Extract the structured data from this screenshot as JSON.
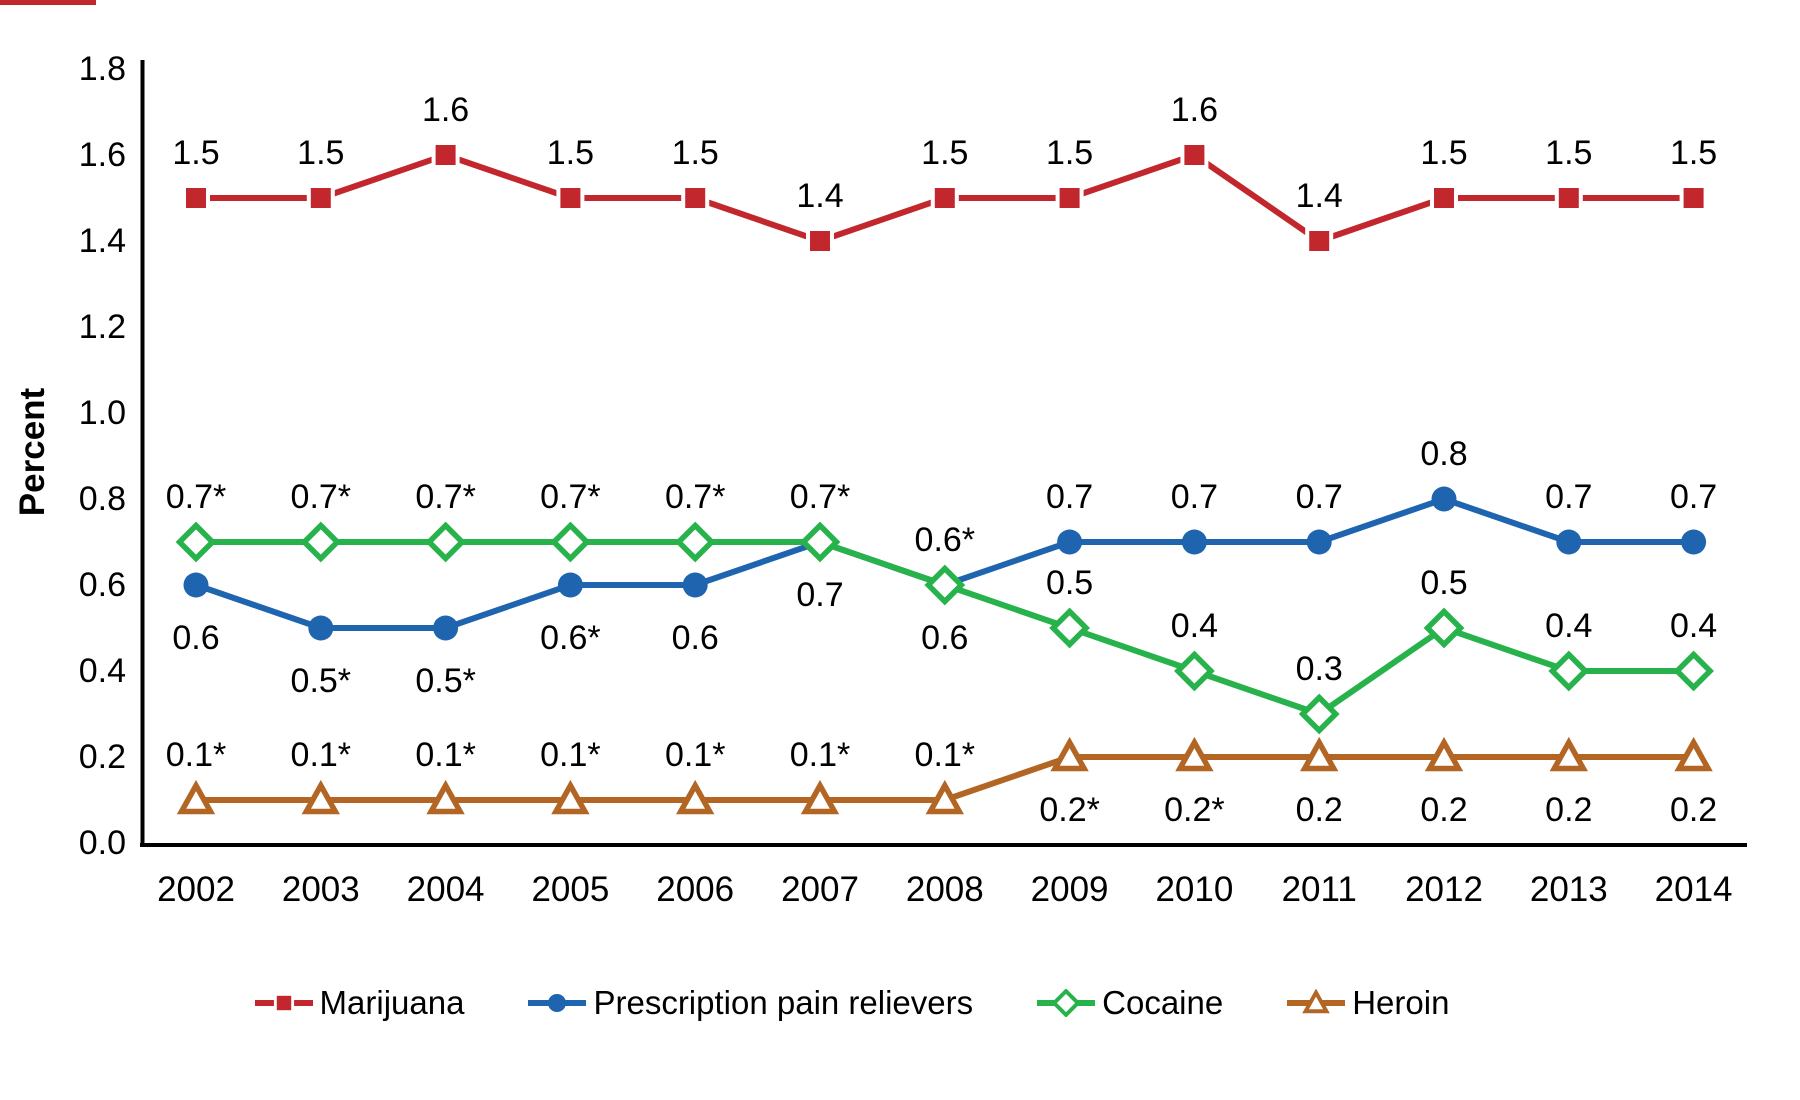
{
  "colors": {
    "marijuana_red": "#C1272D",
    "prescription_blue": "#1E64AF",
    "cocaine_green": "#27B24B",
    "heroin_brown": "#B36524",
    "axis_black": "#000000",
    "background": "#FFFFFF"
  },
  "chart_data": {
    "type": "line",
    "title": "",
    "xlabel": "",
    "ylabel": "Percent",
    "ylim": [
      0.0,
      1.8
    ],
    "y_tick_step": 0.2,
    "grid": false,
    "legend_position": "bottom",
    "y_tick_labels": [
      "0.0",
      "0.2",
      "0.4",
      "0.6",
      "0.8",
      "1.0",
      "1.2",
      "1.4",
      "1.6",
      "1.8"
    ],
    "categories": [
      "2002",
      "2003",
      "2004",
      "2005",
      "2006",
      "2007",
      "2008",
      "2009",
      "2010",
      "2011",
      "2012",
      "2013",
      "2014"
    ],
    "series": [
      {
        "name": "Marijuana",
        "color": "#C1272D",
        "marker": "square",
        "values": [
          1.5,
          1.5,
          1.6,
          1.5,
          1.5,
          1.4,
          1.5,
          1.5,
          1.6,
          1.4,
          1.5,
          1.5,
          1.5
        ],
        "labels": [
          "1.5",
          "1.5",
          "1.6",
          "1.5",
          "1.5",
          "1.4",
          "1.5",
          "1.5",
          "1.6",
          "1.4",
          "1.5",
          "1.5",
          "1.5"
        ],
        "label_pos": [
          "above",
          "above",
          "above",
          "above",
          "above",
          "above",
          "above",
          "above",
          "above",
          "above",
          "above",
          "above",
          "above"
        ]
      },
      {
        "name": "Prescription pain relievers",
        "color": "#1E64AF",
        "marker": "circle",
        "values": [
          0.6,
          0.5,
          0.5,
          0.6,
          0.6,
          0.7,
          0.6,
          0.7,
          0.7,
          0.7,
          0.8,
          0.7,
          0.7
        ],
        "labels": [
          "0.6",
          "0.5*",
          "0.5*",
          "0.6*",
          "0.6",
          "0.7",
          "0.6",
          "0.7",
          "0.7",
          "0.7",
          "0.8",
          "0.7",
          "0.7"
        ],
        "label_pos": [
          "below",
          "below",
          "below",
          "below",
          "below",
          "below",
          "below",
          "above",
          "above",
          "above",
          "above",
          "above",
          "above"
        ]
      },
      {
        "name": "Cocaine",
        "color": "#27B24B",
        "marker": "diamond",
        "values": [
          0.7,
          0.7,
          0.7,
          0.7,
          0.7,
          0.7,
          0.6,
          0.5,
          0.4,
          0.3,
          0.5,
          0.4,
          0.4
        ],
        "labels": [
          "0.7*",
          "0.7*",
          "0.7*",
          "0.7*",
          "0.7*",
          "0.7*",
          "0.6*",
          "0.5",
          "0.4",
          "0.3",
          "0.5",
          "0.4",
          "0.4"
        ],
        "label_pos": [
          "above",
          "above",
          "above",
          "above",
          "above",
          "above",
          "above",
          "above",
          "above",
          "above",
          "above",
          "above",
          "above"
        ]
      },
      {
        "name": "Heroin",
        "color": "#B36524",
        "marker": "triangle",
        "values": [
          0.1,
          0.1,
          0.1,
          0.1,
          0.1,
          0.1,
          0.1,
          0.2,
          0.2,
          0.2,
          0.2,
          0.2,
          0.2
        ],
        "labels": [
          "0.1*",
          "0.1*",
          "0.1*",
          "0.1*",
          "0.1*",
          "0.1*",
          "0.1*",
          "0.2*",
          "0.2*",
          "0.2",
          "0.2",
          "0.2",
          "0.2"
        ],
        "label_pos": [
          "above",
          "above",
          "above",
          "above",
          "above",
          "above",
          "above",
          "below",
          "below",
          "below",
          "below",
          "below",
          "below"
        ]
      }
    ]
  }
}
